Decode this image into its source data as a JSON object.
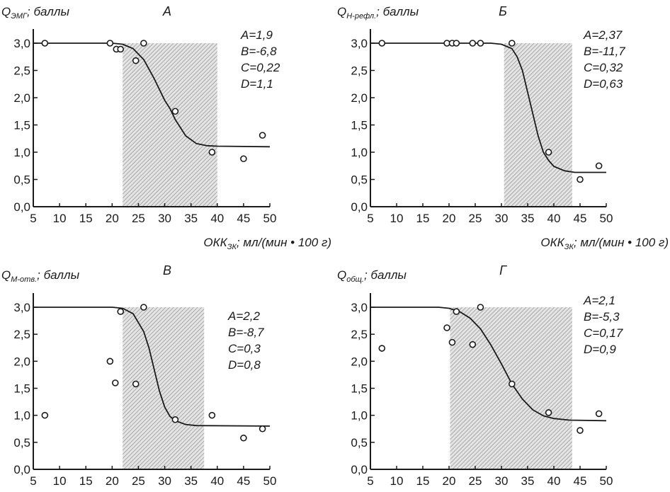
{
  "chart_data": [
    {
      "type": "scatter",
      "panel": "A",
      "title": "А",
      "ylabel_main": "Q",
      "ylabel_sub": "ЭМГ",
      "ylabel_rest": "; баллы",
      "xlabel_main": "ОКК",
      "xlabel_sub": "ЗК",
      "xlabel_rest": "; мл/(мин • 100 г)",
      "show_xlabel": true,
      "xlim": [
        5,
        50
      ],
      "ylim": [
        0,
        3
      ],
      "xticks": [
        "5",
        "10",
        "15",
        "20",
        "25",
        "30",
        "35",
        "40",
        "45",
        "50"
      ],
      "yticks": [
        "0,0",
        "0,5",
        "1,0",
        "1,5",
        "2,0",
        "2,5",
        "3,0"
      ],
      "hatched_region": {
        "x_from": 22,
        "x_to": 40,
        "y_to": 3.0
      },
      "params": [
        "A=1,9",
        "B=-6,8",
        "C=0,22",
        "D=1,1"
      ],
      "points": [
        [
          7.2,
          3.0
        ],
        [
          19.6,
          3.0
        ],
        [
          20.8,
          2.89
        ],
        [
          21.6,
          2.89
        ],
        [
          24.5,
          2.68
        ],
        [
          26,
          3.0
        ],
        [
          32,
          1.75
        ],
        [
          39,
          1.0
        ],
        [
          45,
          0.88
        ],
        [
          48.6,
          1.31
        ]
      ],
      "curve": [
        [
          5,
          3.0
        ],
        [
          20,
          3.0
        ],
        [
          22,
          2.98
        ],
        [
          24,
          2.9
        ],
        [
          26,
          2.7
        ],
        [
          28,
          2.35
        ],
        [
          30,
          1.95
        ],
        [
          31,
          1.8
        ],
        [
          32,
          1.6
        ],
        [
          34,
          1.3
        ],
        [
          36,
          1.16
        ],
        [
          38,
          1.12
        ],
        [
          40,
          1.11
        ],
        [
          50,
          1.1
        ]
      ]
    },
    {
      "type": "scatter",
      "panel": "B",
      "title": "Б",
      "ylabel_main": "Q",
      "ylabel_sub": "Н-рефл.",
      "ylabel_rest": "; баллы",
      "xlabel_main": "ОКК",
      "xlabel_sub": "ЗК",
      "xlabel_rest": "; мл/(мин • 100 г)",
      "show_xlabel": true,
      "xlim": [
        5,
        50
      ],
      "ylim": [
        0,
        3
      ],
      "xticks": [
        "5",
        "10",
        "15",
        "20",
        "25",
        "30",
        "35",
        "40",
        "45",
        "50"
      ],
      "yticks": [
        "0,0",
        "0,5",
        "1,0",
        "1,5",
        "2,0",
        "2,5",
        "3,0"
      ],
      "hatched_region": {
        "x_from": 30.5,
        "x_to": 43.5,
        "y_to": 3.0
      },
      "params": [
        "A=2,37",
        "B=-11,7",
        "C=0,32",
        "D=0,63"
      ],
      "points": [
        [
          7.2,
          3.0
        ],
        [
          19.6,
          3.0
        ],
        [
          20.6,
          3.0
        ],
        [
          21.4,
          3.0
        ],
        [
          24.5,
          3.0
        ],
        [
          26,
          3.0
        ],
        [
          32,
          3.0
        ],
        [
          39,
          1.0
        ],
        [
          45,
          0.5
        ],
        [
          48.6,
          0.75
        ]
      ],
      "curve": [
        [
          5,
          3.0
        ],
        [
          28,
          3.0
        ],
        [
          30,
          2.98
        ],
        [
          32,
          2.9
        ],
        [
          33,
          2.75
        ],
        [
          34,
          2.5
        ],
        [
          35,
          2.1
        ],
        [
          36,
          1.7
        ],
        [
          37,
          1.3
        ],
        [
          38,
          1.0
        ],
        [
          39,
          0.85
        ],
        [
          40,
          0.74
        ],
        [
          42,
          0.66
        ],
        [
          44,
          0.63
        ],
        [
          50,
          0.63
        ]
      ]
    },
    {
      "type": "scatter",
      "panel": "V",
      "title": "В",
      "ylabel_main": "Q",
      "ylabel_sub": "M-отв.",
      "ylabel_rest": "; баллы",
      "show_xlabel": false,
      "xlim": [
        5,
        50
      ],
      "ylim": [
        0,
        3
      ],
      "xticks": [
        "5",
        "10",
        "15",
        "20",
        "25",
        "30",
        "35",
        "40",
        "45",
        "50"
      ],
      "yticks": [
        "0,0",
        "0,5",
        "1,0",
        "1,5",
        "2,0",
        "2,5",
        "3,0"
      ],
      "hatched_region": {
        "x_from": 22,
        "x_to": 37.5,
        "y_to": 3.0
      },
      "params": [
        "A=2,2",
        "B=-8,7",
        "C=0,3",
        "D=0,8"
      ],
      "points": [
        [
          7.2,
          1.0
        ],
        [
          19.6,
          2.0
        ],
        [
          20.6,
          1.6
        ],
        [
          21.6,
          2.92
        ],
        [
          24.5,
          1.58
        ],
        [
          26,
          3.0
        ],
        [
          32,
          0.92
        ],
        [
          39,
          1.0
        ],
        [
          45,
          0.58
        ],
        [
          48.6,
          0.75
        ]
      ],
      "curve": [
        [
          5,
          3.0
        ],
        [
          20,
          3.0
        ],
        [
          22,
          2.98
        ],
        [
          24,
          2.88
        ],
        [
          26,
          2.55
        ],
        [
          27,
          2.25
        ],
        [
          28,
          1.85
        ],
        [
          29,
          1.45
        ],
        [
          30,
          1.15
        ],
        [
          31,
          0.98
        ],
        [
          32,
          0.9
        ],
        [
          34,
          0.83
        ],
        [
          36,
          0.81
        ],
        [
          50,
          0.8
        ]
      ]
    },
    {
      "type": "scatter",
      "panel": "G",
      "title": "Г",
      "ylabel_main": "Q",
      "ylabel_sub": "общ.",
      "ylabel_rest": "; баллы",
      "show_xlabel": false,
      "xlim": [
        5,
        50
      ],
      "ylim": [
        0,
        3
      ],
      "xticks": [
        "5",
        "10",
        "15",
        "20",
        "25",
        "30",
        "35",
        "40",
        "45",
        "50"
      ],
      "yticks": [
        "0,0",
        "0,5",
        "1,0",
        "1,5",
        "2,0",
        "2,5",
        "3,0"
      ],
      "hatched_region": {
        "x_from": 20.2,
        "x_to": 43.5,
        "y_to": 3.0
      },
      "params": [
        "A=2,1",
        "B=-5,3",
        "C=0,17",
        "D=0,9"
      ],
      "points": [
        [
          7.2,
          2.24
        ],
        [
          19.6,
          2.62
        ],
        [
          20.6,
          2.35
        ],
        [
          21.4,
          2.92
        ],
        [
          24.5,
          2.31
        ],
        [
          26,
          3.0
        ],
        [
          32,
          1.58
        ],
        [
          39,
          1.05
        ],
        [
          45,
          0.72
        ],
        [
          48.6,
          1.03
        ]
      ],
      "curve": [
        [
          5,
          3.0
        ],
        [
          18,
          3.0
        ],
        [
          20,
          2.98
        ],
        [
          22,
          2.92
        ],
        [
          24,
          2.8
        ],
        [
          26,
          2.6
        ],
        [
          28,
          2.3
        ],
        [
          30,
          1.95
        ],
        [
          32,
          1.58
        ],
        [
          34,
          1.3
        ],
        [
          36,
          1.1
        ],
        [
          38,
          0.99
        ],
        [
          40,
          0.94
        ],
        [
          43,
          0.91
        ],
        [
          50,
          0.9
        ]
      ]
    }
  ]
}
